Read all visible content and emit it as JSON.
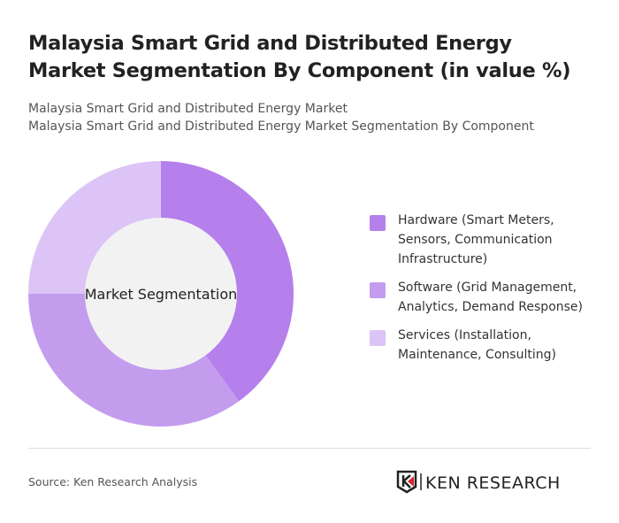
{
  "title": "Malaysia Smart Grid and Distributed Energy Market Segmentation By Component (in value %)",
  "subtitle_lines": [
    "Malaysia Smart Grid and Distributed Energy Market",
    "Malaysia Smart Grid and Distributed Energy Market Segmentation By Component"
  ],
  "chart_data": {
    "type": "pie",
    "variant": "donut",
    "center_label": "Market Segmentation",
    "categories": [
      "Hardware (Smart Meters, Sensors, Communication Infrastructure)",
      "Software (Grid Management, Analytics, Demand Response)",
      "Services (Installation, Maintenance, Consulting)"
    ],
    "values": [
      40,
      35,
      25
    ],
    "colors": [
      "#b57fec",
      "#c49cee",
      "#dcc4f6"
    ],
    "legend_position": "right"
  },
  "footer": {
    "source": "Source: Ken Research Analysis",
    "logo_text": "KEN RESEARCH"
  }
}
